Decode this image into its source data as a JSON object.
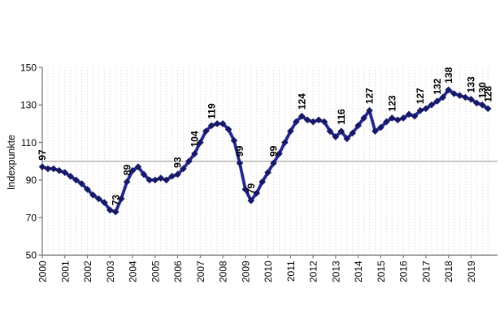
{
  "page": {
    "background": "#ffffff"
  },
  "chart_data": {
    "type": "line",
    "title": "",
    "ylabel": "Indexpunkte",
    "xlabel": "",
    "frequency": "quarterly",
    "x_tick_labels": [
      "2000",
      "2001",
      "2002",
      "2003",
      "2004",
      "2005",
      "2006",
      "2007",
      "2008",
      "2009",
      "2010",
      "2011",
      "2012",
      "2013",
      "2014",
      "2015",
      "2016",
      "2017",
      "2018",
      "2019"
    ],
    "ylim": [
      50,
      150
    ],
    "yticks": [
      150,
      130,
      110,
      90,
      70,
      50
    ],
    "grid": "vertical-dotted-per-point",
    "legend": "none",
    "reference_line": 100,
    "values": [
      97,
      96,
      96,
      95,
      94,
      92,
      90,
      88,
      85,
      82,
      80,
      78,
      74,
      73,
      80,
      89,
      95,
      97,
      93,
      90,
      90,
      91,
      90,
      92,
      93,
      96,
      100,
      104,
      110,
      116,
      119,
      120,
      120,
      117,
      111,
      99,
      85,
      79,
      83,
      89,
      94,
      99,
      104,
      110,
      116,
      121,
      124,
      122,
      121,
      122,
      121,
      116,
      113,
      116,
      112,
      115,
      119,
      123,
      127,
      116,
      118,
      121,
      123,
      122,
      123,
      125,
      124,
      127,
      128,
      130,
      132,
      134,
      138,
      136,
      135,
      134,
      133,
      131,
      130,
      128
    ],
    "point_labels": [
      {
        "index": 0,
        "text": "97"
      },
      {
        "index": 13,
        "text": "73"
      },
      {
        "index": 15,
        "text": "89"
      },
      {
        "index": 24,
        "text": "93"
      },
      {
        "index": 27,
        "text": "104"
      },
      {
        "index": 30,
        "text": "119"
      },
      {
        "index": 35,
        "text": "99"
      },
      {
        "index": 37,
        "text": "79"
      },
      {
        "index": 41,
        "text": "99"
      },
      {
        "index": 46,
        "text": "124"
      },
      {
        "index": 53,
        "text": "116"
      },
      {
        "index": 58,
        "text": "127"
      },
      {
        "index": 62,
        "text": "123"
      },
      {
        "index": 67,
        "text": "127"
      },
      {
        "index": 70,
        "text": "132"
      },
      {
        "index": 72,
        "text": "138"
      },
      {
        "index": 76,
        "text": "133"
      },
      {
        "index": 78,
        "text": "130"
      },
      {
        "index": 79,
        "text": "128"
      }
    ],
    "colors": {
      "line": "#23278f",
      "marker": "#161a66",
      "grid": "#cccccc",
      "reference_line": "#a3a3a3",
      "axis": "#7a7a7a",
      "label_text": "#000000"
    }
  }
}
